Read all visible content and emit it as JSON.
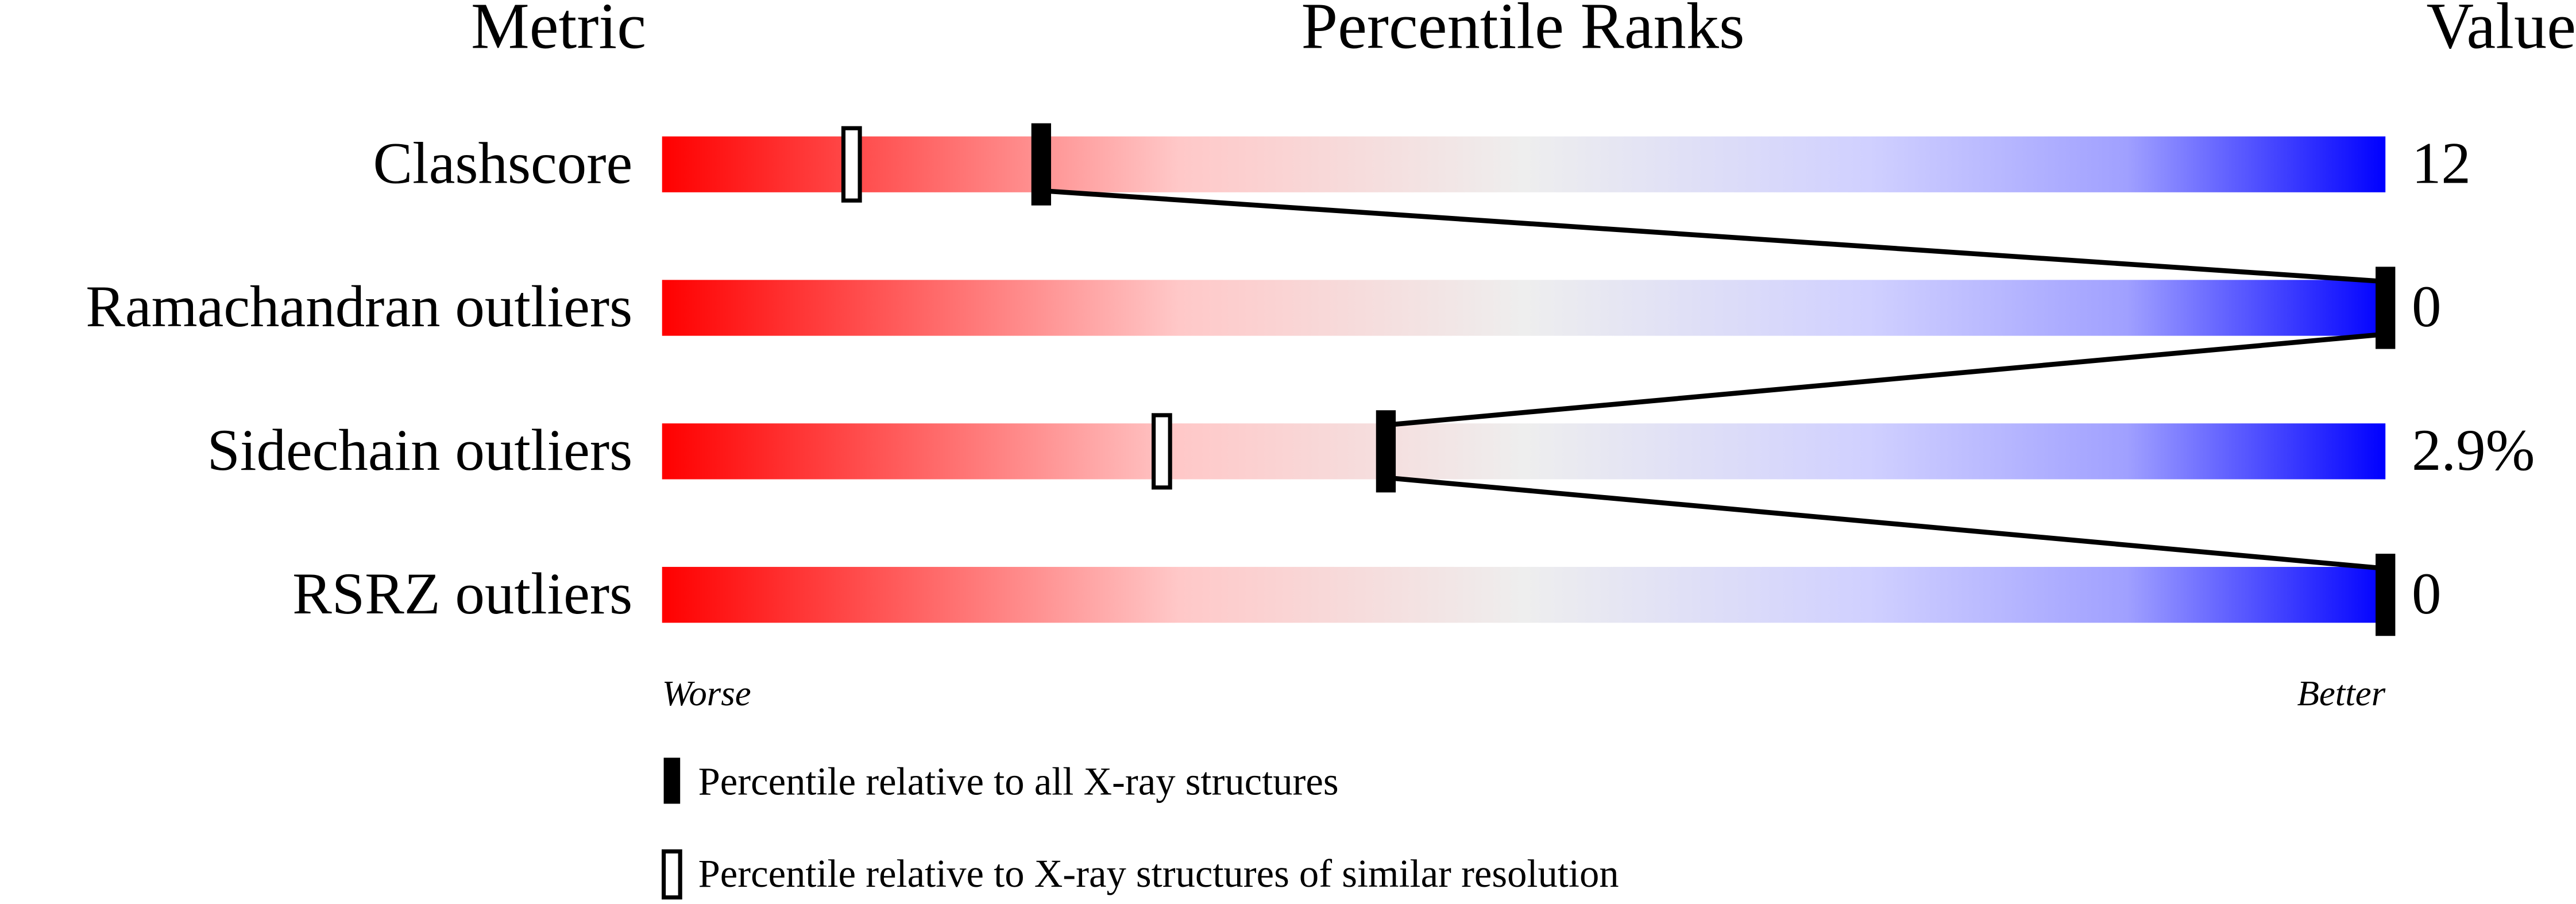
{
  "chart_data": {
    "type": "percentile-slider",
    "headers": {
      "metric": "Metric",
      "ranks": "Percentile Ranks",
      "value": "Value"
    },
    "categories": [
      "Clashscore",
      "Ramachandran outliers",
      "Sidechain outliers",
      "RSRZ outliers"
    ],
    "values": [
      12,
      0,
      2.9,
      0
    ],
    "value_labels": [
      "12",
      "0",
      "2.9%",
      "0"
    ],
    "xlim": [
      0,
      100
    ],
    "x_labels": {
      "low": "Worse",
      "high": "Better"
    },
    "series": [
      {
        "name": "Percentile relative to all X-ray structures",
        "style": "filled",
        "color": "#000000",
        "values": [
          22,
          100,
          42,
          100
        ]
      },
      {
        "name": "Percentile relative to X-ray structures of similar resolution",
        "style": "hollow",
        "color": "#000000",
        "values": [
          11,
          null,
          29,
          null
        ]
      }
    ]
  }
}
